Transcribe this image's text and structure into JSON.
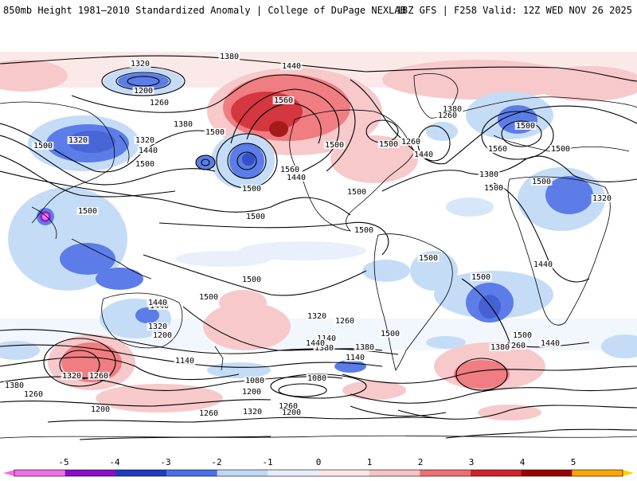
{
  "header": {
    "left": "850mb Height 1981–2010 Standardized Anomaly | College of DuPage NEXLAB",
    "right": "18Z GFS | F258 Valid: 12Z WED NOV 26 2025"
  },
  "colors": {
    "neg5": "#f46de8",
    "neg4": "#8a0fc6",
    "neg3": "#1f3cc0",
    "neg2": "#4a6fe6",
    "neg1": "#bfd8f7",
    "zero_neg": "#e7eefb",
    "zero_pos": "#fbe7e7",
    "pos1": "#f7c3c6",
    "pos2": "#ee6f73",
    "pos3": "#d0212a",
    "pos4": "#9b0000",
    "pos4b": "#ffa500",
    "pos5": "#ffd000",
    "land": "#000000",
    "contour": "#000000"
  },
  "map": {
    "contour_labels": [
      "1320",
      "1380",
      "1440",
      "1200",
      "1260",
      "1320",
      "1560",
      "1500",
      "1440",
      "1500",
      "1380",
      "1320",
      "1500",
      "1560",
      "1440",
      "1500",
      "1500",
      "1500",
      "1500",
      "1440",
      "1380",
      "1260",
      "1500",
      "1560",
      "1500",
      "1500",
      "1500",
      "1500",
      "1500",
      "1500",
      "1500",
      "1500",
      "1500",
      "1500",
      "1440",
      "1320",
      "1260",
      "1380",
      "1440",
      "1320",
      "1200",
      "1260",
      "1140",
      "1380",
      "1140",
      "1080",
      "1080",
      "1140",
      "1200",
      "1260",
      "1320",
      "1260",
      "1200",
      "1320",
      "1440",
      "1380",
      "1260",
      "1200",
      "1260",
      "1320",
      "1440",
      "1380",
      "1500",
      "1260",
      "1380",
      "1440",
      "1500"
    ]
  },
  "colorbar": {
    "ticks": [
      "-5",
      "-4",
      "-3",
      "-2",
      "-1",
      "0",
      "1",
      "2",
      "3",
      "4",
      "5"
    ]
  }
}
